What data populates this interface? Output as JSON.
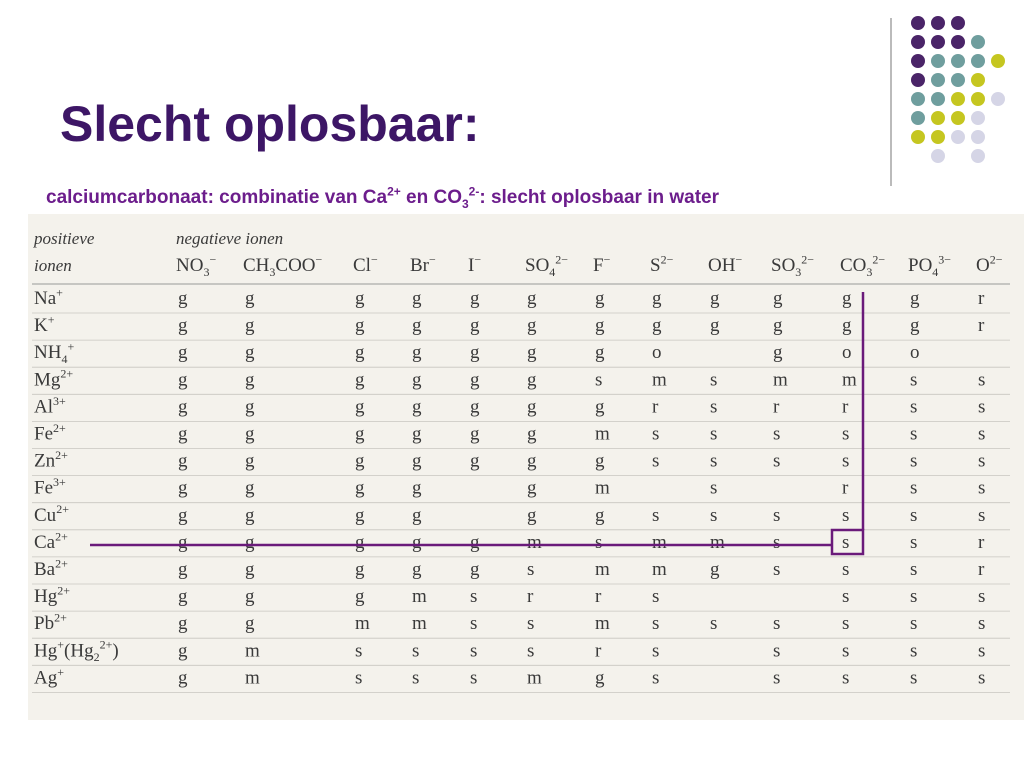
{
  "header": {
    "title": "Slecht oplosbaar:",
    "subtitle": [
      "calciumcarbonaat: combinatie van Ca",
      {
        "sup": "2+"
      },
      " en CO",
      {
        "sub": "3"
      },
      {
        "sup": "2-"
      },
      ": slecht oplosbaar in water"
    ]
  },
  "table": {
    "corner": [
      "positieve",
      "ionen"
    ],
    "group_label": "negatieve ionen",
    "anions": [
      [
        "NO",
        {
          "sub": "3"
        },
        {
          "sup": "−"
        }
      ],
      [
        "CH",
        {
          "sub": "3"
        },
        "COO",
        {
          "sup": "−"
        }
      ],
      [
        "Cl",
        {
          "sup": "−"
        }
      ],
      [
        "Br",
        {
          "sup": "−"
        }
      ],
      [
        "I",
        {
          "sup": "−"
        }
      ],
      [
        "SO",
        {
          "sub": "4"
        },
        {
          "sup": "2−"
        }
      ],
      [
        "F",
        {
          "sup": "−"
        }
      ],
      [
        "S",
        {
          "sup": "2−"
        }
      ],
      [
        "OH",
        {
          "sup": "−"
        }
      ],
      [
        "SO",
        {
          "sub": "3"
        },
        {
          "sup": "2−"
        }
      ],
      [
        "CO",
        {
          "sub": "3"
        },
        {
          "sup": "2−"
        }
      ],
      [
        "PO",
        {
          "sub": "4"
        },
        {
          "sup": "3−"
        }
      ],
      [
        "O",
        {
          "sup": "2−"
        }
      ]
    ],
    "cations": [
      [
        "Na",
        {
          "sup": "+"
        }
      ],
      [
        "K",
        {
          "sup": "+"
        }
      ],
      [
        "NH",
        {
          "sub": "4"
        },
        {
          "sup": "+"
        }
      ],
      [
        "Mg",
        {
          "sup": "2+"
        }
      ],
      [
        "Al",
        {
          "sup": "3+"
        }
      ],
      [
        "Fe",
        {
          "sup": "2+"
        }
      ],
      [
        "Zn",
        {
          "sup": "2+"
        }
      ],
      [
        "Fe",
        {
          "sup": "3+"
        }
      ],
      [
        "Cu",
        {
          "sup": "2+"
        }
      ],
      [
        "Ca",
        {
          "sup": "2+"
        }
      ],
      [
        "Ba",
        {
          "sup": "2+"
        }
      ],
      [
        "Hg",
        {
          "sup": "2+"
        }
      ],
      [
        "Pb",
        {
          "sup": "2+"
        }
      ],
      [
        "Hg",
        {
          "sup": "+"
        },
        "(Hg",
        {
          "sub": "2"
        },
        {
          "sup": "2+"
        },
        ")"
      ],
      [
        "Ag",
        {
          "sup": "+"
        }
      ]
    ],
    "rows": [
      [
        "g",
        "g",
        "g",
        "g",
        "g",
        "g",
        "g",
        "g",
        "g",
        "g",
        "g",
        "g",
        "r"
      ],
      [
        "g",
        "g",
        "g",
        "g",
        "g",
        "g",
        "g",
        "g",
        "g",
        "g",
        "g",
        "g",
        "r"
      ],
      [
        "g",
        "g",
        "g",
        "g",
        "g",
        "g",
        "g",
        "o",
        null,
        "g",
        "o",
        "o",
        null
      ],
      [
        "g",
        "g",
        "g",
        "g",
        "g",
        "g",
        "s",
        "m",
        "s",
        "m",
        "m",
        "s",
        "s"
      ],
      [
        "g",
        "g",
        "g",
        "g",
        "g",
        "g",
        "g",
        "r",
        "s",
        "r",
        "r",
        "s",
        "s"
      ],
      [
        "g",
        "g",
        "g",
        "g",
        "g",
        "g",
        "m",
        "s",
        "s",
        "s",
        "s",
        "s",
        "s"
      ],
      [
        "g",
        "g",
        "g",
        "g",
        "g",
        "g",
        "g",
        "s",
        "s",
        "s",
        "s",
        "s",
        "s"
      ],
      [
        "g",
        "g",
        "g",
        "g",
        null,
        "g",
        "m",
        null,
        "s",
        null,
        "r",
        "s",
        "s"
      ],
      [
        "g",
        "g",
        "g",
        "g",
        null,
        "g",
        "g",
        "s",
        "s",
        "s",
        "s",
        "s",
        "s"
      ],
      [
        "g",
        "g",
        "g",
        "g",
        "g",
        "m",
        "s",
        "m",
        "m",
        "s",
        "s",
        "s",
        "r"
      ],
      [
        "g",
        "g",
        "g",
        "g",
        "g",
        "s",
        "m",
        "m",
        "g",
        "s",
        "s",
        "s",
        "r"
      ],
      [
        "g",
        "g",
        "g",
        "m",
        "s",
        "r",
        "r",
        "s",
        null,
        null,
        "s",
        "s",
        "s"
      ],
      [
        "g",
        "g",
        "m",
        "m",
        "s",
        "s",
        "m",
        "s",
        "s",
        "s",
        "s",
        "s",
        "s"
      ],
      [
        "g",
        "m",
        "s",
        "s",
        "s",
        "s",
        "r",
        "s",
        null,
        "s",
        "s",
        "s",
        "s"
      ],
      [
        "g",
        "m",
        "s",
        "s",
        "s",
        "m",
        "g",
        "s",
        null,
        "s",
        "s",
        "s",
        "s"
      ]
    ]
  }
}
